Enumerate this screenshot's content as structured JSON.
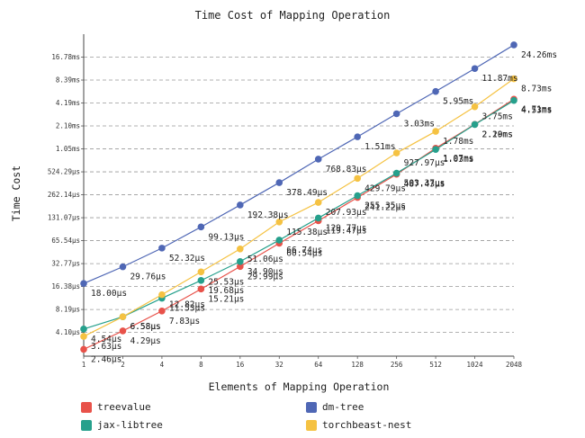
{
  "chart_data": {
    "type": "line",
    "title": "Time Cost of Mapping Operation",
    "xlabel": "Elements of Mapping Operation",
    "ylabel": "Time Cost",
    "x_scale": "log2",
    "y_scale": "log2",
    "grid": "horizontal dashed",
    "legend_position": "bottom",
    "categories": [
      "1",
      "2",
      "4",
      "8",
      "16",
      "32",
      "64",
      "128",
      "256",
      "512",
      "1024",
      "2048"
    ],
    "y_ticks": [
      "4.10µs",
      "8.19µs",
      "16.38µs",
      "32.77µs",
      "65.54µs",
      "131.07µs",
      "262.14µs",
      "524.29µs",
      "1.05ms",
      "2.10ms",
      "4.19ms",
      "8.39ms",
      "16.78ms"
    ],
    "series": [
      {
        "name": "treevalue",
        "color": "#e8524a",
        "values_us": [
          2.46,
          4.29,
          7.83,
          15.21,
          29.99,
          60.54,
          119.47,
          241.22,
          487.43,
          1070,
          2200,
          4710
        ],
        "labels": [
          "2.46µs",
          "4.29µs",
          "7.83µs",
          "15.21µs",
          "29.99µs",
          "60.54µs",
          "119.47µs",
          "241.22µs",
          "487.43µs",
          "1.07ms",
          "2.20ms",
          "4.71ms"
        ]
      },
      {
        "name": "dm-tree",
        "color": "#4f67b5",
        "values_us": [
          18.0,
          29.76,
          52.32,
          99.13,
          192.38,
          378.49,
          768.83,
          1510,
          3030,
          5950,
          11870,
          24260
        ],
        "labels": [
          "18.00µs",
          "29.76µs",
          "52.32µs",
          "99.13µs",
          "192.38µs",
          "378.49µs",
          "768.83µs",
          "1.51ms",
          "3.03ms",
          "5.95ms",
          "11.87ms",
          "24.26ms"
        ]
      },
      {
        "name": "jax-libtree",
        "color": "#26a08c",
        "values_us": [
          4.54,
          6.58,
          11.53,
          19.68,
          34.9,
          66.74,
          129.77,
          255.35,
          503.37,
          1030,
          2190,
          4530
        ],
        "labels": [
          "4.54µs",
          "6.58µs",
          "11.53µs",
          "19.68µs",
          "34.90µs",
          "66.74µs",
          "129.77µs",
          "255.35µs",
          "503.37µs",
          "1.03ms",
          "2.19ms",
          "4.53ms"
        ]
      },
      {
        "name": "torchbeast-nest",
        "color": "#f5c242",
        "values_us": [
          3.63,
          6.58,
          12.82,
          25.53,
          51.06,
          115.38,
          207.93,
          429.79,
          927.97,
          1780,
          3750,
          8730
        ],
        "labels": [
          "3.63µs",
          "6.58µs",
          "12.82µs",
          "25.53µs",
          "51.06µs",
          "115.38µs",
          "207.93µs",
          "429.79µs",
          "927.97µs",
          "1.78ms",
          "3.75ms",
          "8.73ms"
        ]
      }
    ]
  }
}
